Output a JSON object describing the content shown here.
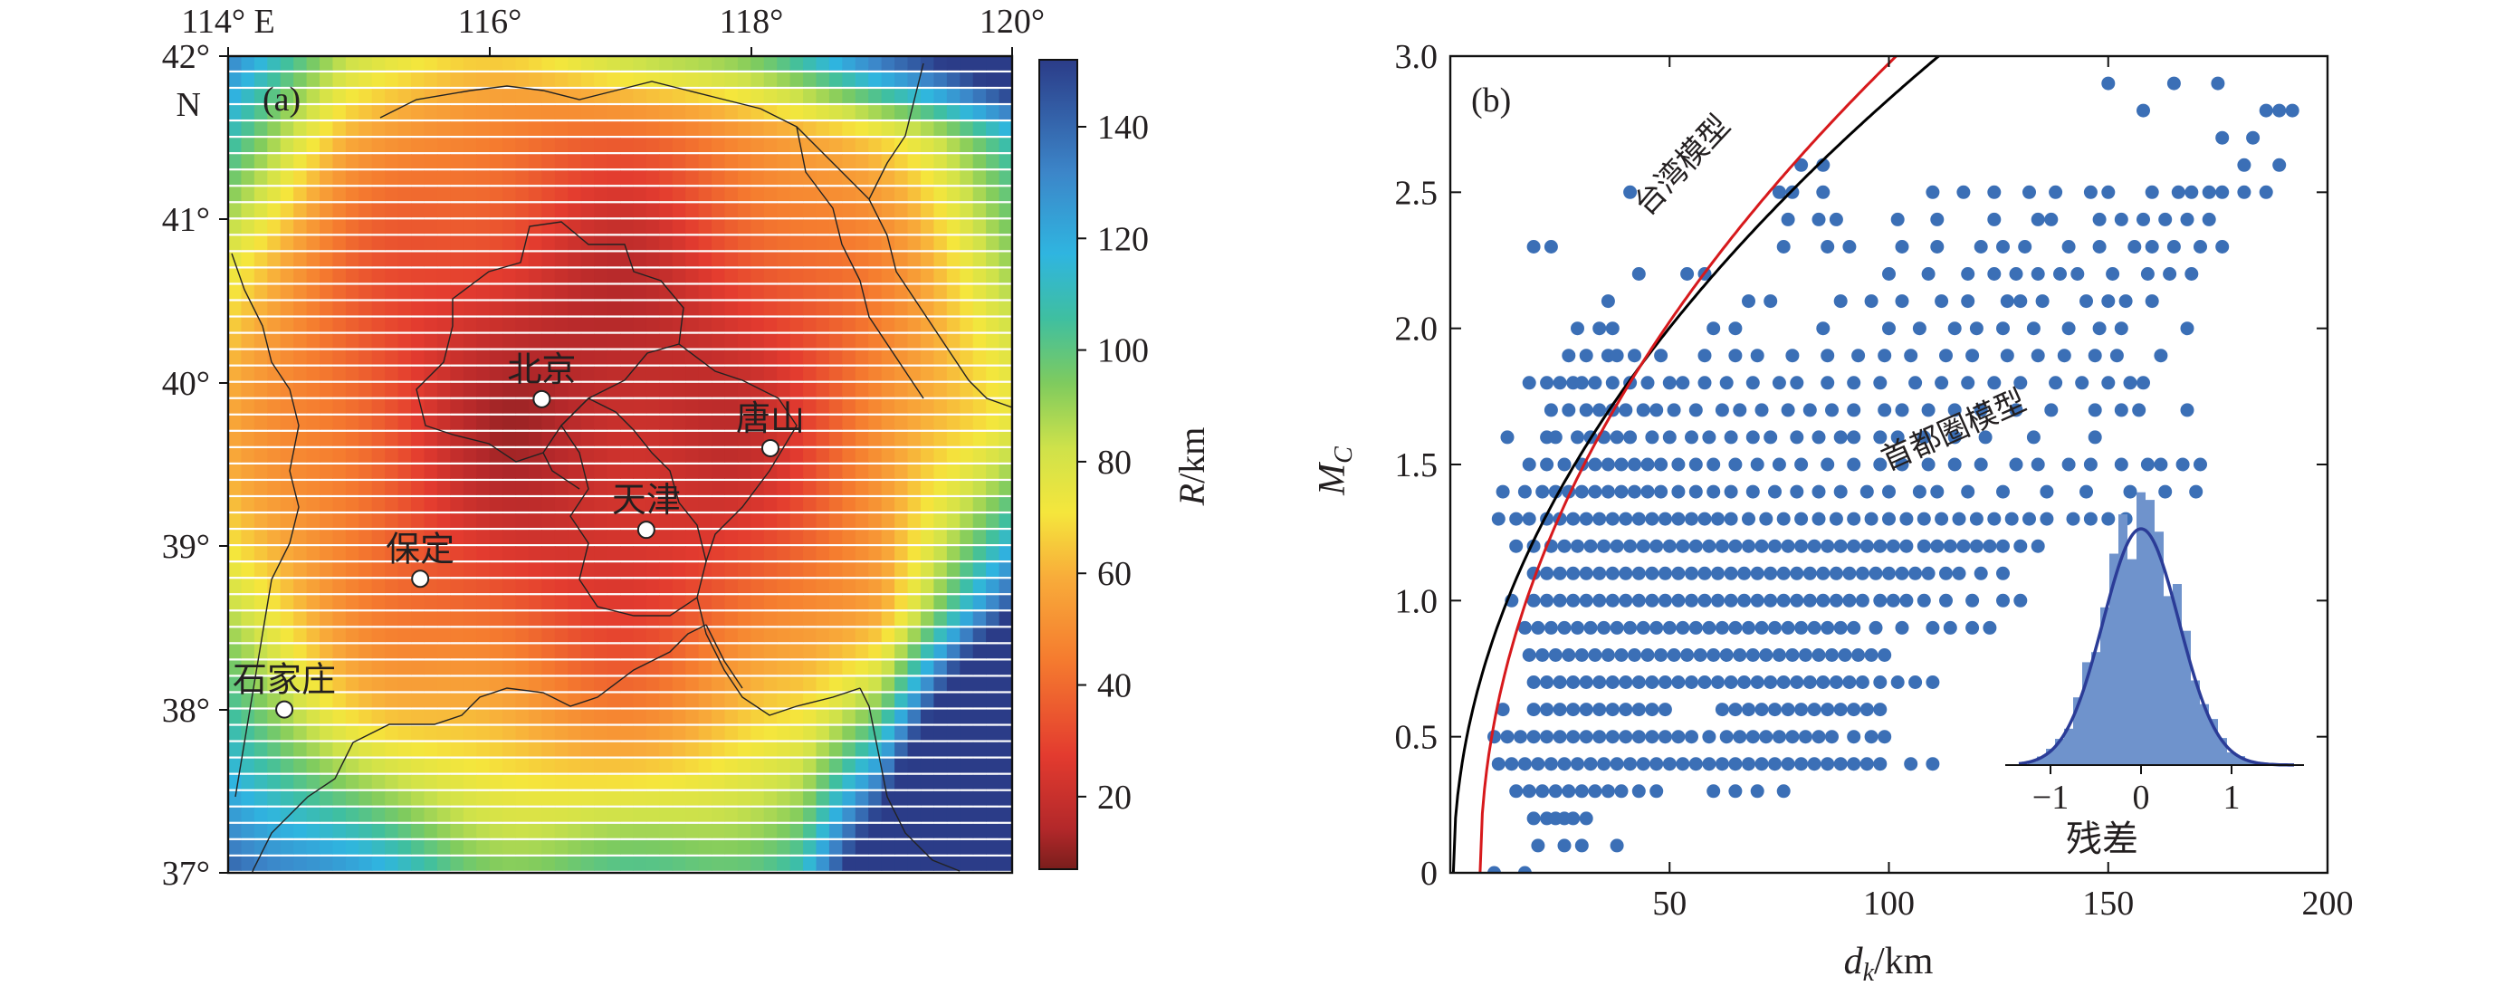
{
  "chart_data": [
    {
      "type": "heatmap",
      "panel_label": "(a)",
      "x_tick_labels": [
        "114° E",
        "116°",
        "118°",
        "120°"
      ],
      "x_ticks": [
        114,
        116,
        118,
        120
      ],
      "y_tick_labels": [
        "37°",
        "38°",
        "39°",
        "40°",
        "41°",
        "42°"
      ],
      "y_ticks": [
        37,
        38,
        39,
        40,
        41,
        42
      ],
      "y_top_suffix": "N",
      "xlim": [
        114,
        120
      ],
      "ylim": [
        37,
        42
      ],
      "colorbar": {
        "label_var": "R",
        "label_unit": "/km",
        "range": [
          7,
          152
        ],
        "ticks": [
          20,
          40,
          60,
          80,
          100,
          120,
          140
        ],
        "tick_labels": [
          "20",
          "40",
          "60",
          "80",
          "100",
          "120",
          "140"
        ]
      },
      "cities": [
        {
          "name": "北京",
          "lon": 116.4,
          "lat": 39.9
        },
        {
          "name": "唐山",
          "lon": 118.15,
          "lat": 39.6
        },
        {
          "name": "天津",
          "lon": 117.2,
          "lat": 39.1
        },
        {
          "name": "保定",
          "lon": 115.47,
          "lat": 38.8
        },
        {
          "name": "石家庄",
          "lon": 114.43,
          "lat": 38.0
        }
      ]
    },
    {
      "type": "scatter",
      "panel_label": "(b)",
      "xlabel_var": "d",
      "xlabel_sub": "k",
      "xlabel_unit": "/km",
      "ylabel_var": "M",
      "ylabel_sub": "C",
      "xlim": [
        0,
        200
      ],
      "ylim": [
        0,
        3.0
      ],
      "x_ticks": [
        50,
        100,
        150,
        200
      ],
      "x_tick_labels": [
        "50",
        "100",
        "150",
        "200"
      ],
      "y_ticks": [
        0,
        0.5,
        1.0,
        1.5,
        2.0,
        2.5,
        3.0
      ],
      "y_tick_labels": [
        "0",
        "0.5",
        "1.0",
        "1.5",
        "2.0",
        "2.5",
        "3.0"
      ],
      "point_color": "#3b6fb6",
      "curves": [
        {
          "name": "台湾模型",
          "color": "#000000",
          "a": 0.46,
          "b": 1.0,
          "x0": 0.7
        },
        {
          "name": "首都圈模型",
          "color": "#d7191c",
          "a": 0.72,
          "b": 0.69,
          "x0": 6.8
        }
      ],
      "rows": [
        {
          "y": 2.9,
          "x": [
            150,
            165,
            175
          ]
        },
        {
          "y": 2.8,
          "x": [
            158,
            186,
            189,
            192
          ]
        },
        {
          "y": 2.7,
          "x": [
            176,
            183
          ]
        },
        {
          "y": 2.6,
          "x": [
            80,
            85,
            181,
            189
          ]
        },
        {
          "y": 2.5,
          "x": [
            41,
            75,
            78,
            85,
            110,
            117,
            124,
            132,
            138,
            146,
            150,
            160,
            166,
            169,
            173,
            176,
            181,
            186
          ]
        },
        {
          "y": 2.4,
          "x": [
            77,
            84,
            88,
            102,
            111,
            124,
            134,
            137,
            148,
            153,
            158,
            163,
            168,
            173
          ]
        },
        {
          "y": 2.3,
          "x": [
            19,
            23,
            76,
            86,
            91,
            103,
            111,
            121,
            126,
            131,
            141,
            148,
            156,
            160,
            165,
            171,
            176
          ]
        },
        {
          "y": 2.2,
          "x": [
            43,
            54,
            58,
            100,
            109,
            118,
            124,
            129,
            134,
            139,
            143,
            151,
            159,
            164,
            169
          ]
        },
        {
          "y": 2.1,
          "x": [
            36,
            68,
            73,
            89,
            96,
            103,
            112,
            118,
            127,
            130,
            135,
            145,
            150,
            154,
            160
          ]
        },
        {
          "y": 2.0,
          "x": [
            29,
            34,
            37,
            60,
            65,
            85,
            100,
            107,
            115,
            120,
            126,
            133,
            141,
            148,
            153,
            168
          ]
        },
        {
          "y": 1.9,
          "x": [
            27,
            31,
            36,
            38,
            42,
            48,
            58,
            65,
            70,
            78,
            86,
            93,
            99,
            105,
            113,
            119,
            127,
            134,
            140,
            147,
            152,
            162
          ]
        },
        {
          "y": 1.8,
          "x": [
            18,
            22,
            25,
            28,
            30,
            33,
            37,
            41,
            45,
            50,
            53,
            58,
            63,
            69,
            75,
            79,
            86,
            92,
            98,
            106,
            112,
            118,
            124,
            130,
            138,
            144,
            150,
            155,
            158
          ]
        },
        {
          "y": 1.7,
          "x": [
            23,
            27,
            31,
            34,
            37,
            40,
            44,
            47,
            51,
            56,
            62,
            66,
            71,
            77,
            82,
            87,
            92,
            99,
            103,
            109,
            115,
            121,
            129,
            137,
            147,
            153,
            157,
            168
          ]
        },
        {
          "y": 1.6,
          "x": [
            13,
            22,
            24,
            29,
            32,
            35,
            38,
            41,
            46,
            50,
            55,
            59,
            64,
            69,
            73,
            79,
            84,
            89,
            92,
            98,
            102,
            108,
            115,
            122,
            133,
            147
          ]
        },
        {
          "y": 1.5,
          "x": [
            18,
            22,
            26,
            30,
            33,
            36,
            39,
            42,
            45,
            48,
            52,
            56,
            60,
            65,
            70,
            75,
            80,
            86,
            92,
            98,
            103,
            109,
            115,
            121,
            129,
            134,
            141,
            146,
            153,
            159,
            162,
            167,
            171
          ]
        },
        {
          "y": 1.4,
          "x": [
            12,
            17,
            21,
            24,
            27,
            30,
            33,
            36,
            39,
            42,
            45,
            48,
            52,
            56,
            60,
            64,
            69,
            74,
            79,
            84,
            89,
            95,
            100,
            107,
            111,
            118,
            126,
            136,
            145,
            155,
            163,
            170
          ]
        },
        {
          "y": 1.3,
          "x": [
            11,
            15,
            18,
            22,
            25,
            28,
            31,
            34,
            37,
            40,
            43,
            46,
            49,
            52,
            55,
            58,
            61,
            64,
            68,
            72,
            76,
            80,
            84,
            88,
            92,
            96,
            100,
            104,
            108,
            112,
            116,
            120,
            124,
            128,
            132,
            136,
            142,
            146,
            150,
            154
          ]
        },
        {
          "y": 1.2,
          "x": [
            15,
            19,
            23,
            26,
            29,
            32,
            35,
            38,
            41,
            44,
            47,
            50,
            53,
            56,
            59,
            62,
            65,
            68,
            71,
            74,
            77,
            80,
            83,
            86,
            89,
            92,
            95,
            98,
            101,
            104,
            108,
            111,
            114,
            117,
            120,
            123,
            126,
            130,
            134
          ]
        },
        {
          "y": 1.1,
          "x": [
            19,
            22,
            25,
            28,
            31,
            34,
            37,
            40,
            43,
            46,
            49,
            52,
            55,
            58,
            61,
            64,
            67,
            70,
            73,
            76,
            79,
            82,
            85,
            88,
            91,
            94,
            97,
            100,
            103,
            106,
            109,
            113,
            116,
            121,
            126
          ]
        },
        {
          "y": 1.0,
          "x": [
            14,
            19,
            22,
            25,
            28,
            31,
            34,
            37,
            40,
            43,
            46,
            49,
            52,
            55,
            58,
            61,
            64,
            67,
            70,
            73,
            76,
            79,
            82,
            85,
            88,
            91,
            94,
            98,
            101,
            104,
            108,
            113,
            119,
            126,
            130
          ]
        },
        {
          "y": 0.9,
          "x": [
            17,
            20,
            23,
            26,
            29,
            32,
            35,
            38,
            41,
            44,
            47,
            50,
            53,
            56,
            59,
            62,
            65,
            68,
            71,
            74,
            77,
            80,
            83,
            86,
            89,
            92,
            97,
            103,
            110,
            114,
            119,
            123
          ]
        },
        {
          "y": 0.8,
          "x": [
            18,
            21,
            24,
            27,
            30,
            33,
            36,
            39,
            42,
            45,
            48,
            51,
            54,
            57,
            60,
            63,
            66,
            69,
            72,
            75,
            78,
            81,
            84,
            87,
            90,
            93,
            96,
            99
          ]
        },
        {
          "y": 0.7,
          "x": [
            19,
            22,
            25,
            28,
            31,
            34,
            37,
            40,
            43,
            46,
            49,
            52,
            55,
            58,
            61,
            64,
            67,
            70,
            73,
            76,
            79,
            82,
            85,
            88,
            91,
            94,
            98,
            102,
            106,
            110
          ]
        },
        {
          "y": 0.6,
          "x": [
            12,
            19,
            22,
            25,
            28,
            31,
            34,
            37,
            40,
            43,
            46,
            49,
            62,
            65,
            68,
            71,
            74,
            77,
            80,
            83,
            86,
            89,
            92,
            95,
            98
          ]
        },
        {
          "y": 0.5,
          "x": [
            10,
            13,
            16,
            19,
            22,
            25,
            28,
            31,
            34,
            37,
            40,
            43,
            46,
            49,
            52,
            55,
            59,
            63,
            66,
            69,
            72,
            75,
            78,
            81,
            84,
            87,
            92,
            96,
            99
          ]
        },
        {
          "y": 0.4,
          "x": [
            11,
            14,
            17,
            20,
            23,
            26,
            29,
            32,
            35,
            38,
            41,
            44,
            47,
            50,
            53,
            56,
            59,
            62,
            65,
            68,
            71,
            74,
            77,
            80,
            83,
            86,
            89,
            92,
            95,
            98,
            105,
            110
          ]
        },
        {
          "y": 0.3,
          "x": [
            15,
            18,
            21,
            24,
            27,
            30,
            33,
            36,
            39,
            43,
            47,
            60,
            65,
            70,
            76
          ]
        },
        {
          "y": 0.2,
          "x": [
            19,
            22,
            24,
            26,
            28,
            31
          ]
        },
        {
          "y": 0.1,
          "x": [
            20,
            26,
            30,
            38
          ]
        },
        {
          "y": 0.0,
          "x": [
            10,
            17
          ]
        }
      ],
      "inset": {
        "xlabel": "残差",
        "x_ticks": [
          -1,
          0,
          1
        ],
        "x_tick_labels": [
          "−1",
          "0",
          "1"
        ],
        "xlim": [
          -1.5,
          1.8
        ],
        "bar_color": "#6f93cc",
        "curve_color": "#2b3c97",
        "mean": 0.0,
        "sd": 0.42
      }
    }
  ]
}
